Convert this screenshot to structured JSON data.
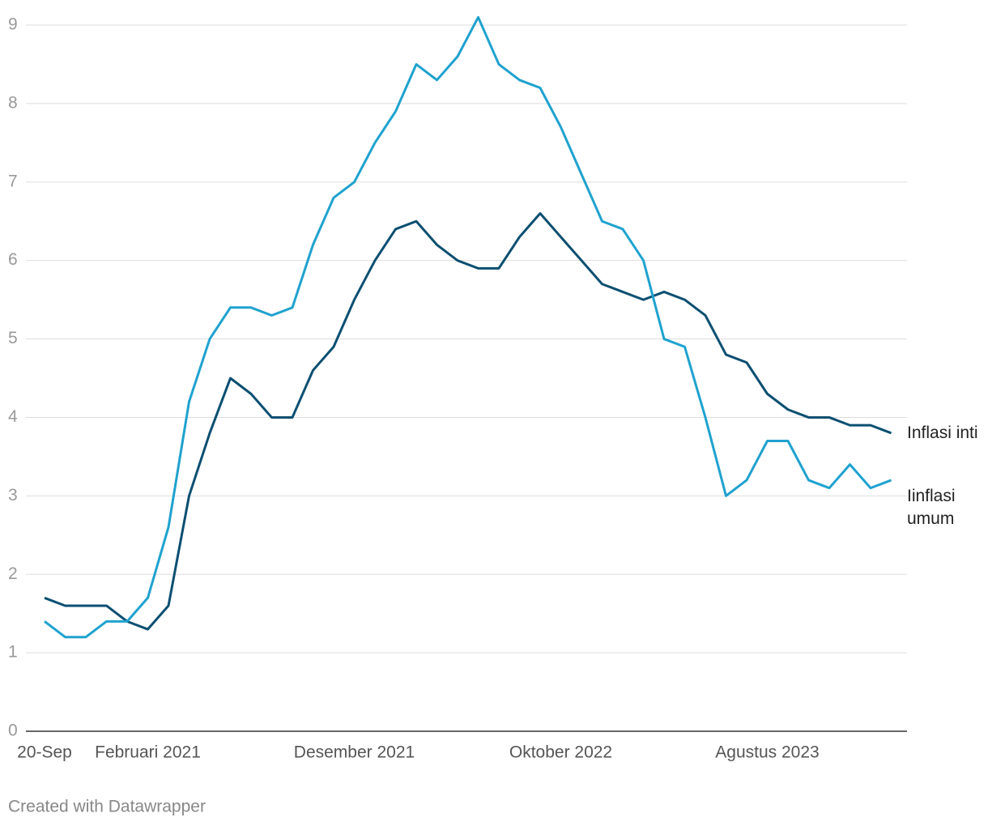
{
  "chart_data": {
    "type": "line",
    "categories": [
      "20-Sep",
      null,
      null,
      null,
      null,
      "Februari 2021",
      null,
      null,
      null,
      null,
      null,
      null,
      null,
      null,
      null,
      "Desember 2021",
      null,
      null,
      null,
      null,
      null,
      null,
      null,
      null,
      null,
      "Oktober 2022",
      null,
      null,
      null,
      null,
      null,
      null,
      null,
      null,
      null,
      "Agustus 2023",
      null,
      null,
      null,
      null,
      null,
      null
    ],
    "series": [
      {
        "name": "Inflasi inti",
        "color": "#0b4f71",
        "values": [
          1.7,
          1.6,
          1.6,
          1.6,
          1.4,
          1.3,
          1.6,
          3.0,
          3.8,
          4.5,
          4.3,
          4.0,
          4.0,
          4.6,
          4.9,
          5.5,
          6.0,
          6.4,
          6.5,
          6.2,
          6.0,
          5.9,
          5.9,
          6.3,
          6.6,
          6.3,
          6.0,
          5.7,
          5.6,
          5.5,
          5.6,
          5.5,
          5.3,
          4.8,
          4.7,
          4.3,
          4.1,
          4.0,
          4.0,
          3.9,
          3.9,
          3.8
        ]
      },
      {
        "name": "Iinflasi umum",
        "color": "#1fa2cf",
        "values": [
          1.4,
          1.2,
          1.2,
          1.4,
          1.4,
          1.7,
          2.6,
          4.2,
          5.0,
          5.4,
          5.4,
          5.3,
          5.4,
          6.2,
          6.8,
          7.0,
          7.5,
          7.9,
          8.5,
          8.3,
          8.6,
          9.1,
          8.5,
          8.3,
          8.2,
          7.7,
          7.1,
          6.5,
          6.4,
          6.0,
          5.0,
          4.9,
          4.0,
          3.0,
          3.2,
          3.7,
          3.7,
          3.2,
          3.1,
          3.4,
          3.1,
          3.2
        ]
      }
    ],
    "ylim": [
      0,
      9
    ],
    "yticks": [
      0,
      1,
      2,
      3,
      4,
      5,
      6,
      7,
      8,
      9
    ],
    "grid": true,
    "footer": "Created with Datawrapper"
  }
}
